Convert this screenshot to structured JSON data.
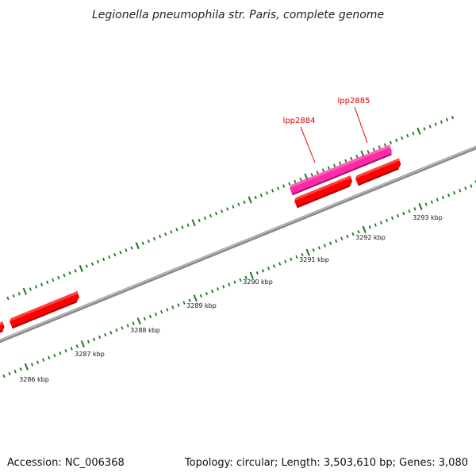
{
  "title": "Legionella pneumophila str. Paris, complete genome",
  "footer": {
    "accession": "Accession: NC_006368",
    "summary": "Topology: circular; Length: 3,503,610 bp; Genes: 3,080"
  },
  "colors": {
    "backbone": "#8a8a8a",
    "backbone_highlight": "#c4c4c4",
    "gene": "#ff0000",
    "gene_dark": "#a80000",
    "highlighted_gene": "#ff2aa8",
    "highlighted_gene_dark": "#a0106a",
    "gene_label": "#dd0000",
    "tick": "#1a7a1a"
  },
  "scale_ticks": [
    {
      "label": "3286 kbp"
    },
    {
      "label": "3287 kbp"
    },
    {
      "label": "3288 kbp"
    },
    {
      "label": "3289 kbp"
    },
    {
      "label": "3290 kbp"
    },
    {
      "label": "3291 kbp"
    },
    {
      "label": "3292 kbp"
    },
    {
      "label": "3293 kbp"
    }
  ],
  "gene_labels": [
    {
      "name": "lpp2884"
    },
    {
      "name": "lpp2885"
    }
  ]
}
